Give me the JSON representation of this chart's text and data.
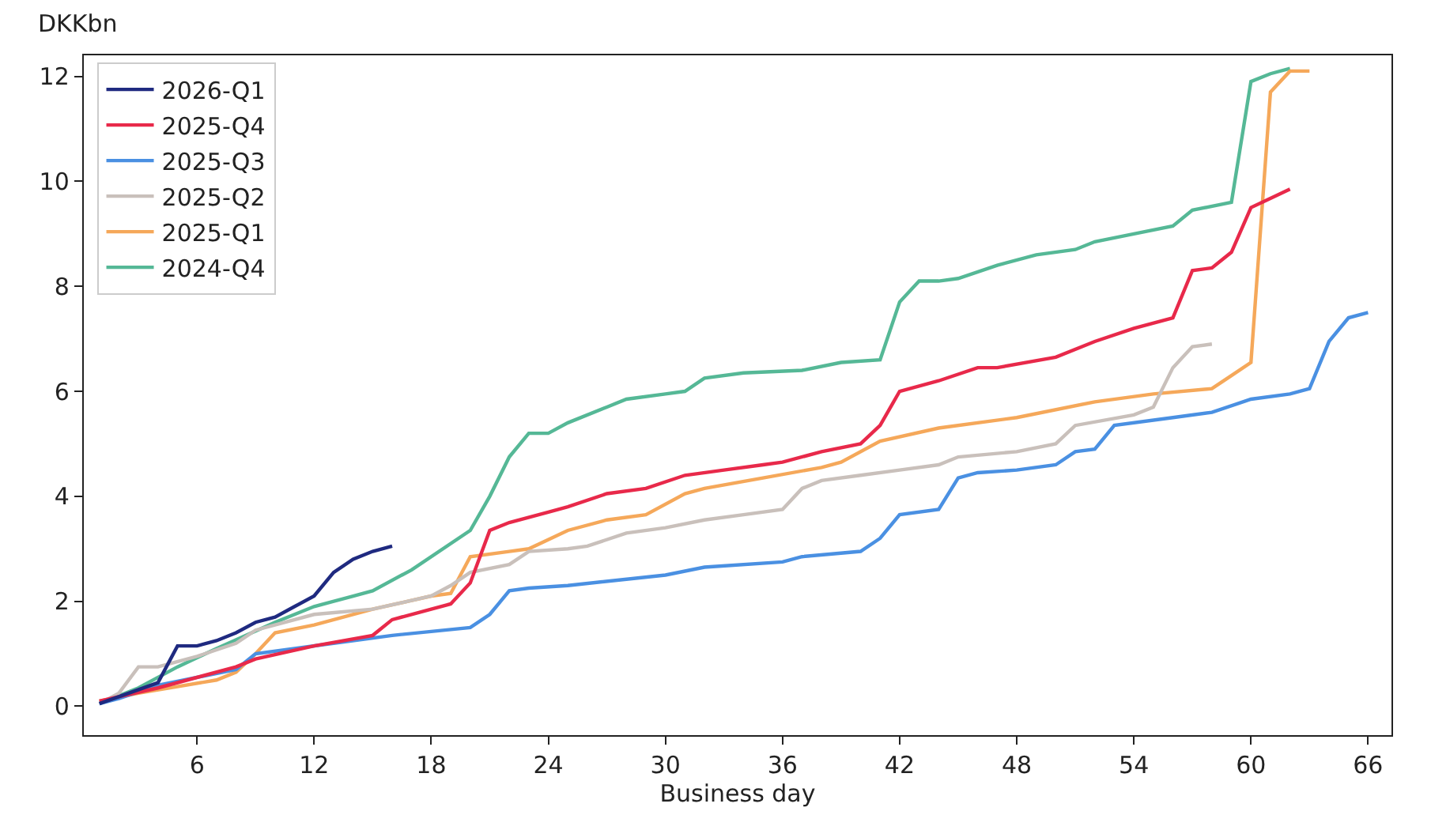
{
  "chart_data": {
    "type": "line",
    "xlabel": "Business day",
    "ylabel": "DKKbn",
    "xlim": [
      0.2,
      67.2
    ],
    "xticks": [
      6,
      12,
      18,
      24,
      30,
      36,
      42,
      48,
      54,
      60,
      66
    ],
    "ylim": [
      -0.55,
      12.4
    ],
    "yticks": [
      0,
      2,
      4,
      6,
      8,
      10,
      12
    ],
    "grid": false,
    "legend": "top left",
    "marker": "none",
    "line_style": "solid",
    "series": [
      {
        "name": "2026-Q1",
        "color": "#1f2a80",
        "x": [
          1,
          4,
          5,
          6,
          7,
          8,
          9,
          10,
          11,
          12,
          13,
          14,
          15,
          16
        ],
        "values": [
          0.05,
          0.45,
          1.15,
          1.15,
          1.25,
          1.4,
          1.6,
          1.7,
          1.9,
          2.1,
          2.55,
          2.8,
          2.95,
          3.05
        ]
      },
      {
        "name": "2025-Q4",
        "color": "#e8294a",
        "x": [
          1,
          4,
          8,
          9,
          12,
          15,
          16,
          18,
          19,
          20,
          21,
          22,
          24,
          25,
          27,
          29,
          31,
          33,
          35,
          36,
          38,
          40,
          41,
          42,
          44,
          46,
          47,
          50,
          52,
          54,
          56,
          57,
          58,
          59,
          60,
          62
        ],
        "values": [
          0.1,
          0.35,
          0.75,
          0.9,
          1.15,
          1.35,
          1.65,
          1.85,
          1.95,
          2.35,
          3.35,
          3.5,
          3.7,
          3.8,
          4.05,
          4.15,
          4.4,
          4.5,
          4.6,
          4.65,
          4.85,
          5.0,
          5.35,
          6.0,
          6.2,
          6.45,
          6.45,
          6.65,
          6.95,
          7.2,
          7.4,
          8.3,
          8.35,
          8.65,
          9.5,
          9.85
        ]
      },
      {
        "name": "2025-Q3",
        "color": "#4a90e2",
        "x": [
          1,
          2,
          4,
          8,
          9,
          13,
          16,
          20,
          21,
          22,
          23,
          25,
          30,
          32,
          36,
          37,
          40,
          41,
          42,
          44,
          45,
          46,
          48,
          50,
          51,
          52,
          53,
          56,
          58,
          60,
          62,
          63,
          64,
          65,
          66
        ],
        "values": [
          0.05,
          0.15,
          0.4,
          0.7,
          1.0,
          1.2,
          1.35,
          1.5,
          1.75,
          2.2,
          2.25,
          2.3,
          2.5,
          2.65,
          2.75,
          2.85,
          2.95,
          3.2,
          3.65,
          3.75,
          4.35,
          4.45,
          4.5,
          4.6,
          4.85,
          4.9,
          5.35,
          5.5,
          5.6,
          5.85,
          5.95,
          6.05,
          6.95,
          7.4,
          7.5
        ]
      },
      {
        "name": "2025-Q2",
        "color": "#c9c0bb",
        "x": [
          1,
          2,
          3,
          4,
          6,
          8,
          9,
          12,
          15,
          18,
          19,
          20,
          22,
          23,
          25,
          26,
          28,
          30,
          32,
          34,
          36,
          37,
          38,
          40,
          42,
          44,
          45,
          48,
          50,
          51,
          54,
          55,
          56,
          57,
          58
        ],
        "values": [
          0.05,
          0.25,
          0.75,
          0.75,
          0.95,
          1.2,
          1.45,
          1.75,
          1.85,
          2.1,
          2.3,
          2.55,
          2.7,
          2.95,
          3.0,
          3.05,
          3.3,
          3.4,
          3.55,
          3.65,
          3.75,
          4.15,
          4.3,
          4.4,
          4.5,
          4.6,
          4.75,
          4.85,
          5.0,
          5.35,
          5.55,
          5.7,
          6.45,
          6.85,
          6.9
        ]
      },
      {
        "name": "2025-Q1",
        "color": "#f5a85a",
        "x": [
          1,
          3,
          7,
          8,
          9,
          10,
          12,
          15,
          18,
          19,
          20,
          22,
          23,
          25,
          27,
          29,
          31,
          32,
          35,
          38,
          39,
          41,
          44,
          48,
          52,
          55,
          58,
          59,
          60,
          61,
          62,
          63
        ],
        "values": [
          0.1,
          0.25,
          0.5,
          0.65,
          1.0,
          1.4,
          1.55,
          1.85,
          2.1,
          2.15,
          2.85,
          2.95,
          3.0,
          3.35,
          3.55,
          3.65,
          4.05,
          4.15,
          4.35,
          4.55,
          4.65,
          5.05,
          5.3,
          5.5,
          5.8,
          5.95,
          6.05,
          6.3,
          6.55,
          11.7,
          12.1,
          12.1
        ]
      },
      {
        "name": "2024-Q4",
        "color": "#55b896",
        "x": [
          1,
          3,
          5,
          7,
          10,
          12,
          14,
          15,
          17,
          20,
          21,
          22,
          23,
          24,
          25,
          27,
          28,
          30,
          31,
          32,
          34,
          37,
          39,
          41,
          42,
          43,
          44,
          45,
          47,
          49,
          51,
          52,
          54,
          56,
          57,
          59,
          60,
          61,
          62
        ],
        "values": [
          0.05,
          0.35,
          0.75,
          1.1,
          1.6,
          1.9,
          2.1,
          2.2,
          2.6,
          3.35,
          4.0,
          4.75,
          5.2,
          5.2,
          5.4,
          5.7,
          5.85,
          5.95,
          6.0,
          6.25,
          6.35,
          6.4,
          6.55,
          6.6,
          7.7,
          8.1,
          8.1,
          8.15,
          8.4,
          8.6,
          8.7,
          8.85,
          9.0,
          9.15,
          9.45,
          9.6,
          11.9,
          12.05,
          12.15
        ]
      }
    ]
  }
}
